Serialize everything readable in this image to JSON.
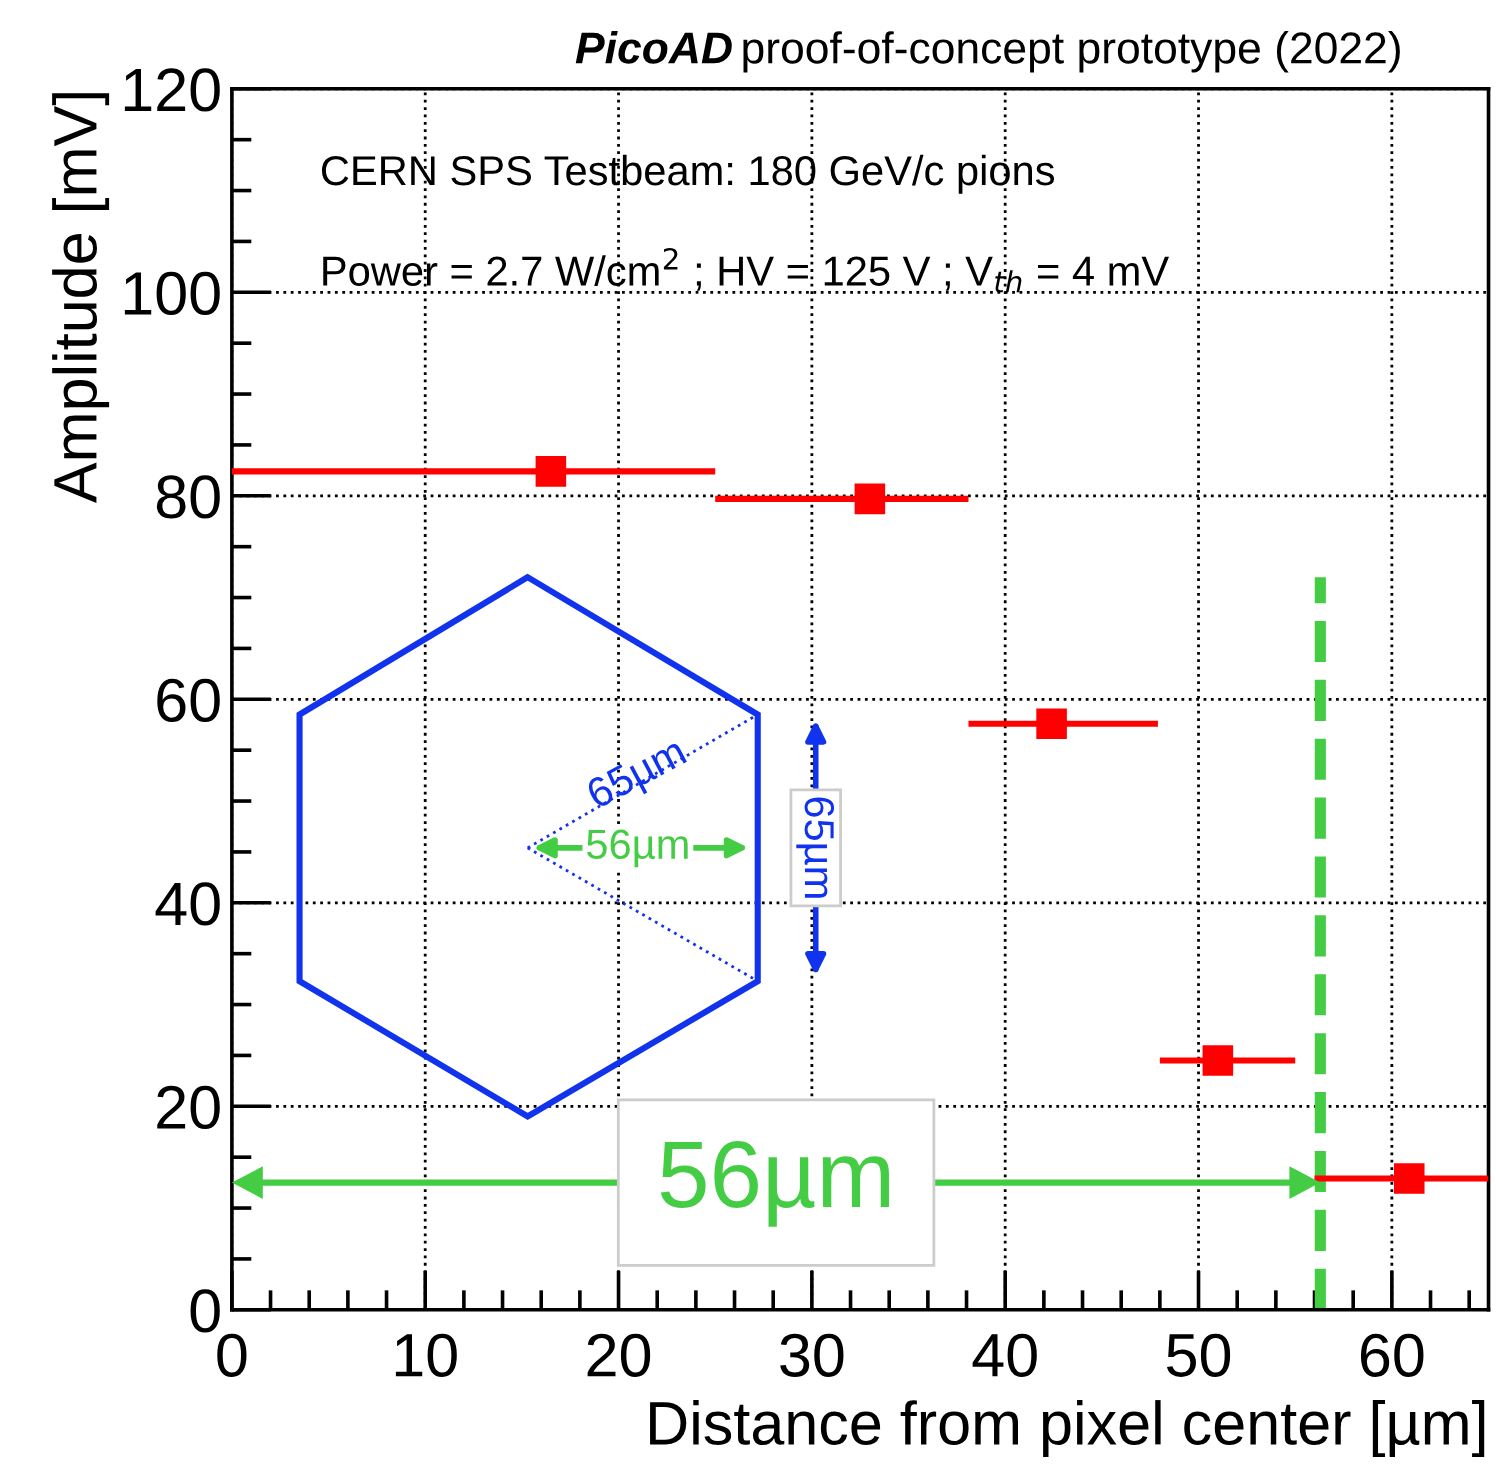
{
  "chart_data": {
    "type": "scatter",
    "title": "PicoAD proof-of-concept prototype (2022)",
    "xlabel": "Distance from pixel center [µm]",
    "ylabel": "Amplitude [mV]",
    "x": [
      16.5,
      33.0,
      42.4,
      51.0,
      60.9
    ],
    "series": [
      {
        "color": "#ff0000",
        "values": [
          82.4,
          79.7,
          57.6,
          24.5,
          12.9
        ],
        "xerrors": [
          [
            0,
            25.0
          ],
          [
            25.0,
            38.1
          ],
          [
            38.1,
            47.9
          ],
          [
            48.0,
            55.0
          ],
          [
            56.0,
            65
          ]
        ]
      }
    ],
    "xlim": [
      0,
      65
    ],
    "ylim": [
      0,
      120
    ],
    "xticks": [
      0,
      10,
      20,
      30,
      40,
      50,
      60
    ],
    "yticks": [
      0,
      20,
      40,
      60,
      80,
      100,
      120
    ],
    "ref_lines": [
      {
        "axis": "x",
        "value": 56.3,
        "color": "#44cc44",
        "line_style": "dashed"
      }
    ],
    "annotations": [
      "CERN SPS Testbeam: 180 GeV/c pions",
      "Power = 2.7 W/cm$^{2}$ ; HV = 125 V ; V$_{th}$ = 4 mV",
      "56µm",
      "65µm",
      "56µm",
      "65µm"
    ],
    "grid": true,
    "marker": "square",
    "line_style": "none"
  }
}
